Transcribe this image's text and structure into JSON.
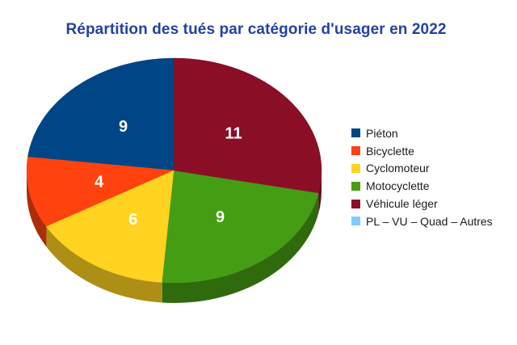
{
  "chart_data": {
    "type": "pie",
    "effect": "3d",
    "title": "Répartition des tués par catégorie d'usager en 2022",
    "title_color": "#2341A5",
    "background_color": "#FFFFFF",
    "legend_position": "right",
    "data_labels": "values",
    "data_label_color": "#FFFFFF",
    "start_angle_deg": 90,
    "direction": "counterclockwise",
    "slices": [
      {
        "label": "Piéton",
        "value": 9,
        "color": "#004586"
      },
      {
        "label": "Bicyclette",
        "value": 4,
        "color": "#FF420E"
      },
      {
        "label": "Cyclomoteur",
        "value": 6,
        "color": "#FFD320"
      },
      {
        "label": "Motocyclette",
        "value": 9,
        "color": "#459D13"
      },
      {
        "label": "Véhicule léger",
        "value": 11,
        "color": "#8A0E26"
      },
      {
        "label": "PL – VU – Quad – Autres",
        "value": 0,
        "color": "#83CAFF"
      }
    ]
  }
}
